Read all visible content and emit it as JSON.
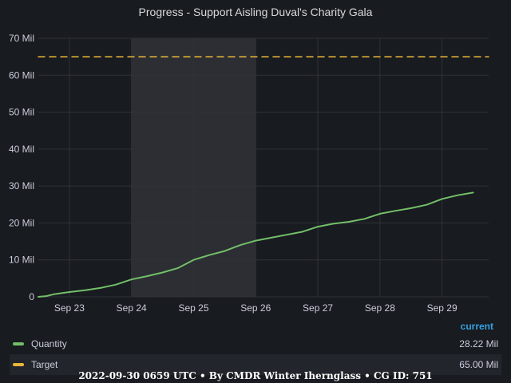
{
  "title": "Progress - Support Aisling Duval's Charity Gala",
  "chart_data": {
    "type": "line",
    "title": "Progress - Support Aisling Duval's Charity Gala",
    "y_ticks": [
      "0",
      "10 Mil",
      "20 Mil",
      "30 Mil",
      "40 Mil",
      "50 Mil",
      "60 Mil",
      "70 Mil"
    ],
    "ylim": [
      0,
      70000000
    ],
    "x_ticks": [
      "Sep 23",
      "Sep 24",
      "Sep 25",
      "Sep 26",
      "Sep 27",
      "Sep 28",
      "Sep 29"
    ],
    "xlim": [
      "2022-09-22 12:00",
      "2022-09-29 18:00"
    ],
    "highlight_range": [
      "2022-09-24 00:00",
      "2022-09-26 00:00"
    ],
    "grid": true,
    "series": [
      {
        "name": "Quantity",
        "color": "#73bf69",
        "style": "solid",
        "points": [
          [
            "2022-09-22 12:00",
            0
          ],
          [
            "2022-09-22 15:00",
            200000
          ],
          [
            "2022-09-22 18:00",
            700000
          ],
          [
            "2022-09-23 00:00",
            1300000
          ],
          [
            "2022-09-23 06:00",
            1800000
          ],
          [
            "2022-09-23 12:00",
            2400000
          ],
          [
            "2022-09-23 18:00",
            3300000
          ],
          [
            "2022-09-24 00:00",
            4700000
          ],
          [
            "2022-09-24 06:00",
            5600000
          ],
          [
            "2022-09-24 12:00",
            6600000
          ],
          [
            "2022-09-24 18:00",
            7800000
          ],
          [
            "2022-09-25 00:00",
            10000000
          ],
          [
            "2022-09-25 06:00",
            11300000
          ],
          [
            "2022-09-25 12:00",
            12400000
          ],
          [
            "2022-09-25 18:00",
            14000000
          ],
          [
            "2022-09-26 00:00",
            15200000
          ],
          [
            "2022-09-26 06:00",
            16000000
          ],
          [
            "2022-09-26 12:00",
            16800000
          ],
          [
            "2022-09-26 18:00",
            17600000
          ],
          [
            "2022-09-27 00:00",
            19000000
          ],
          [
            "2022-09-27 06:00",
            19800000
          ],
          [
            "2022-09-27 12:00",
            20300000
          ],
          [
            "2022-09-27 18:00",
            21100000
          ],
          [
            "2022-09-28 00:00",
            22500000
          ],
          [
            "2022-09-28 06:00",
            23300000
          ],
          [
            "2022-09-28 12:00",
            24000000
          ],
          [
            "2022-09-28 18:00",
            24900000
          ],
          [
            "2022-09-29 00:00",
            26500000
          ],
          [
            "2022-09-29 06:00",
            27500000
          ],
          [
            "2022-09-29 12:00",
            28220000
          ]
        ]
      },
      {
        "name": "Target",
        "color": "#eab839",
        "style": "dashed",
        "points": [
          [
            "2022-09-22 12:00",
            65000000
          ],
          [
            "2022-09-29 18:00",
            65000000
          ]
        ]
      }
    ]
  },
  "legend": {
    "header": "current",
    "items": [
      {
        "name": "Quantity",
        "value": "28.22 Mil",
        "color": "#73bf69"
      },
      {
        "name": "Target",
        "value": "65.00 Mil",
        "color": "#eab839"
      }
    ]
  },
  "footer": "2022-09-30 0659 UTC • By CMDR Winter Iherngl​ass • CG ID: 751"
}
